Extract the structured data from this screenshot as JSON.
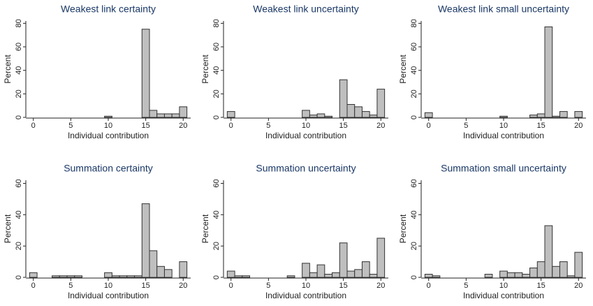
{
  "chart_data": [
    {
      "type": "histogram",
      "title": "Weakest link certainty",
      "xlabel": "Individual contribution",
      "ylabel": "Percent",
      "color": "#bfbfbf",
      "bins": [
        -0.5,
        0.5,
        1.5,
        2.5,
        3.5,
        4.5,
        5.5,
        6.5,
        7.5,
        8.5,
        9.5,
        10.5,
        11.5,
        12.5,
        13.5,
        14.5,
        15.5,
        16.5,
        17.5,
        18.5,
        19.5,
        20.5
      ],
      "values": [
        0,
        0,
        0,
        0,
        0,
        0,
        0,
        0,
        0,
        0,
        1,
        0,
        0,
        0,
        0,
        75,
        6,
        3,
        3,
        3,
        9
      ],
      "xlim": [
        -1,
        21
      ],
      "xticks": [
        0,
        5,
        10,
        15,
        20
      ],
      "ylim": [
        0,
        82
      ],
      "yticks": [
        0,
        20,
        40,
        60,
        80
      ]
    },
    {
      "type": "histogram",
      "title": "Weakest link uncertainty",
      "xlabel": "Individual contribution",
      "ylabel": "Percent",
      "color": "#bfbfbf",
      "bins": [
        -0.5,
        0.5,
        1.5,
        2.5,
        3.5,
        4.5,
        5.5,
        6.5,
        7.5,
        8.5,
        9.5,
        10.5,
        11.5,
        12.5,
        13.5,
        14.5,
        15.5,
        16.5,
        17.5,
        18.5,
        19.5,
        20.5
      ],
      "values": [
        5,
        0,
        0,
        0,
        0,
        0,
        0,
        0,
        0,
        0,
        6,
        2,
        3,
        1,
        0,
        32,
        11,
        9,
        5,
        2,
        24
      ],
      "xlim": [
        -1,
        21
      ],
      "xticks": [
        0,
        5,
        10,
        15,
        20
      ],
      "ylim": [
        0,
        82
      ],
      "yticks": [
        0,
        20,
        40,
        60,
        80
      ]
    },
    {
      "type": "histogram",
      "title": "Weakest link small uncertainty",
      "xlabel": "Individual contribution",
      "ylabel": "Percent",
      "color": "#bfbfbf",
      "bins": [
        -0.5,
        0.5,
        1.5,
        2.5,
        3.5,
        4.5,
        5.5,
        6.5,
        7.5,
        8.5,
        9.5,
        10.5,
        11.5,
        12.5,
        13.5,
        14.5,
        15.5,
        16.5,
        17.5,
        18.5,
        19.5,
        20.5
      ],
      "values": [
        4,
        0,
        0,
        0,
        0,
        0,
        0,
        0,
        0,
        0,
        1,
        0,
        0,
        0,
        2,
        3,
        77,
        1,
        5,
        0,
        5
      ],
      "xlim": [
        -1,
        21
      ],
      "xticks": [
        0,
        5,
        10,
        15,
        20
      ],
      "ylim": [
        0,
        82
      ],
      "yticks": [
        0,
        20,
        40,
        60,
        80
      ]
    },
    {
      "type": "histogram",
      "title": "Summation certainty",
      "xlabel": "Individual contribution",
      "ylabel": "Percent",
      "color": "#bfbfbf",
      "bins": [
        -0.5,
        0.5,
        1.5,
        2.5,
        3.5,
        4.5,
        5.5,
        6.5,
        7.5,
        8.5,
        9.5,
        10.5,
        11.5,
        12.5,
        13.5,
        14.5,
        15.5,
        16.5,
        17.5,
        18.5,
        19.5,
        20.5
      ],
      "values": [
        3,
        0,
        0,
        1,
        1,
        1,
        1,
        0,
        0,
        0,
        3,
        1,
        1,
        1,
        1,
        47,
        17,
        7,
        5,
        0,
        10
      ],
      "xlim": [
        -1,
        21
      ],
      "xticks": [
        0,
        5,
        10,
        15,
        20
      ],
      "ylim": [
        0,
        62
      ],
      "yticks": [
        0,
        20,
        40,
        60
      ]
    },
    {
      "type": "histogram",
      "title": "Summation uncertainty",
      "xlabel": "Individual contribution",
      "ylabel": "Percent",
      "color": "#bfbfbf",
      "bins": [
        -0.5,
        0.5,
        1.5,
        2.5,
        3.5,
        4.5,
        5.5,
        6.5,
        7.5,
        8.5,
        9.5,
        10.5,
        11.5,
        12.5,
        13.5,
        14.5,
        15.5,
        16.5,
        17.5,
        18.5,
        19.5,
        20.5
      ],
      "values": [
        4,
        1,
        1,
        0,
        0,
        0,
        0,
        0,
        1,
        0,
        9,
        3,
        8,
        2,
        3,
        22,
        4,
        5,
        10,
        2,
        25
      ],
      "xlim": [
        -1,
        21
      ],
      "xticks": [
        0,
        5,
        10,
        15,
        20
      ],
      "ylim": [
        0,
        62
      ],
      "yticks": [
        0,
        20,
        40,
        60
      ]
    },
    {
      "type": "histogram",
      "title": "Summation small uncertainty",
      "xlabel": "Individual contribution",
      "ylabel": "Percent",
      "color": "#bfbfbf",
      "bins": [
        -0.5,
        0.5,
        1.5,
        2.5,
        3.5,
        4.5,
        5.5,
        6.5,
        7.5,
        8.5,
        9.5,
        10.5,
        11.5,
        12.5,
        13.5,
        14.5,
        15.5,
        16.5,
        17.5,
        18.5,
        19.5,
        20.5
      ],
      "values": [
        2,
        1,
        0,
        0,
        0,
        0,
        0,
        0,
        2,
        0,
        4,
        3,
        3,
        2,
        6,
        10,
        33,
        7,
        10,
        1,
        16
      ],
      "xlim": [
        -1,
        21
      ],
      "xticks": [
        0,
        5,
        10,
        15,
        20
      ],
      "ylim": [
        0,
        62
      ],
      "yticks": [
        0,
        20,
        40,
        60
      ]
    }
  ]
}
